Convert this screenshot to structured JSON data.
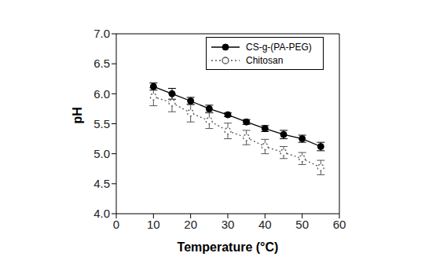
{
  "chart_data": {
    "type": "line",
    "x_label": "Temperature (°C)",
    "y_label": "pH",
    "x": [
      10,
      15,
      20,
      25,
      30,
      35,
      40,
      45,
      50,
      55
    ],
    "series": [
      {
        "name": "CS-g-(PA-PEG)",
        "color": "#000000",
        "marker": "filled_circle",
        "line_style": "solid",
        "values": [
          6.12,
          6.0,
          5.88,
          5.75,
          5.65,
          5.53,
          5.42,
          5.32,
          5.25,
          5.12
        ],
        "errors": [
          0.06,
          0.09,
          0.06,
          0.06,
          0.03,
          0.04,
          0.05,
          0.07,
          0.06,
          0.07
        ]
      },
      {
        "name": "Chitosan",
        "color": "#555555",
        "marker": "open_circle",
        "line_style": "dotted",
        "values": [
          5.95,
          5.85,
          5.68,
          5.55,
          5.38,
          5.27,
          5.12,
          5.02,
          4.92,
          4.77
        ],
        "errors": [
          0.15,
          0.15,
          0.15,
          0.13,
          0.13,
          0.12,
          0.12,
          0.1,
          0.1,
          0.12
        ]
      }
    ],
    "xlim": [
      0,
      60
    ],
    "xticks": [
      0,
      10,
      20,
      30,
      40,
      50,
      60
    ],
    "ylim": [
      4,
      7
    ],
    "yticks": [
      {
        "value": 4,
        "label": "4.0"
      },
      4.5,
      {
        "value": 5,
        "label": "5.0"
      },
      5.5,
      {
        "value": 6,
        "label": "6.0"
      },
      6.5,
      {
        "value": 7,
        "label": "7.0"
      }
    ],
    "legend": "upper right",
    "grid": false
  }
}
